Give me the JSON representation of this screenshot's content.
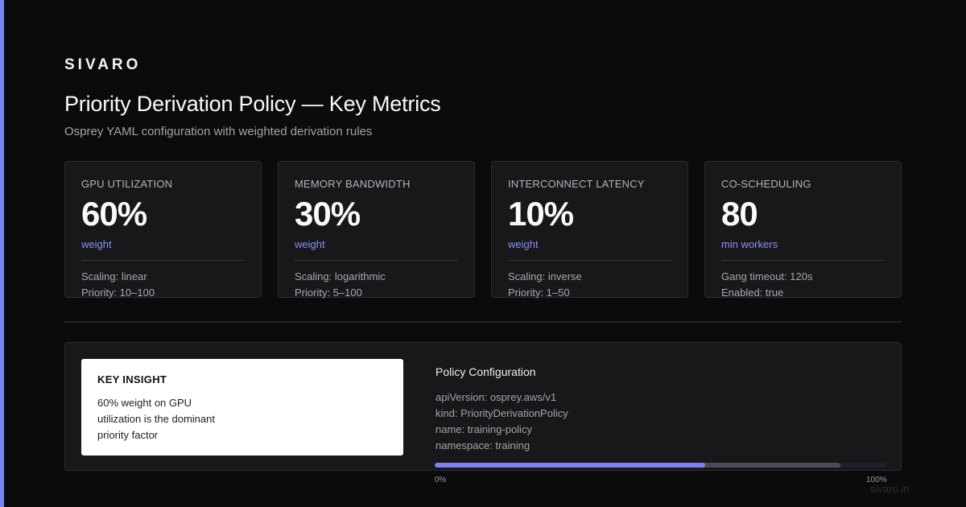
{
  "brand": {
    "name": "SIVARO"
  },
  "header": {
    "title": "Priority Derivation Policy — Key Metrics",
    "subtitle": "Osprey YAML configuration with weighted derivation rules"
  },
  "cards": [
    {
      "label": "GPU UTILIZATION",
      "value": "60%",
      "unit": "weight",
      "detail_1": "Scaling: linear",
      "detail_2": "Priority: 10–100"
    },
    {
      "label": "MEMORY BANDWIDTH",
      "value": "30%",
      "unit": "weight",
      "detail_1": "Scaling: logarithmic",
      "detail_2": "Priority: 5–100"
    },
    {
      "label": "INTERCONNECT LATENCY",
      "value": "10%",
      "unit": "weight",
      "detail_1": "Scaling: inverse",
      "detail_2": "Priority: 1–50"
    },
    {
      "label": "CO-SCHEDULING",
      "value": "80",
      "unit": "min workers",
      "detail_1": "Gang timeout: 120s",
      "detail_2": "Enabled: true"
    }
  ],
  "insight": {
    "title": "KEY INSIGHT",
    "text": "60% weight on GPU utilization is the dominant priority factor"
  },
  "config": {
    "title": "Policy Configuration",
    "lines": [
      "apiVersion: osprey.aws/v1",
      "kind: PriorityDerivationPolicy",
      "name: training-policy",
      "namespace: training"
    ]
  },
  "progress": {
    "primary_fraction": 0.6,
    "secondary_fraction": 0.9,
    "min_label": "0%",
    "max_label": "100%",
    "primary_color": "#7b82f0",
    "secondary_color": "#4a4d58"
  },
  "footer": {
    "domain": "sivaro.in"
  },
  "colors": {
    "accent": "#7b82f0",
    "background": "#0b0b0c",
    "card": "#18181b"
  }
}
